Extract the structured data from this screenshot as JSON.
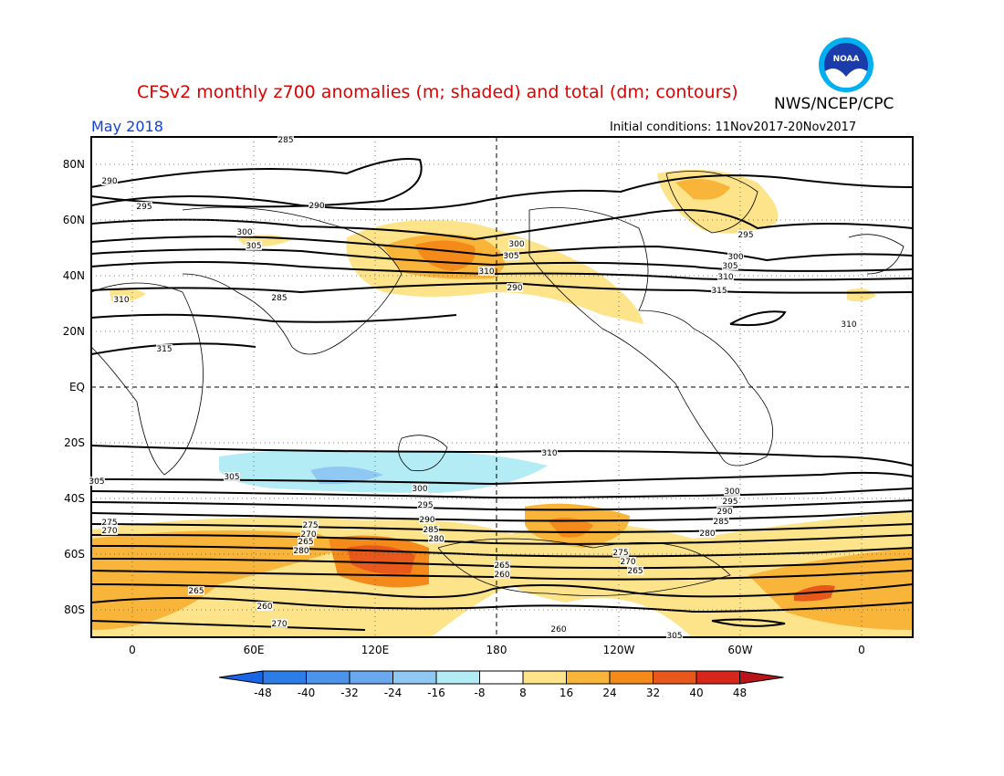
{
  "header": {
    "title": "CFSv2 monthly z700 anomalies (m; shaded) and total (dm; contours)",
    "agency": "NWS/NCEP/CPC",
    "month": "May 2018",
    "initial_conditions": "Initial conditions: 11Nov2017-20Nov2017"
  },
  "logo": {
    "icon": "noaa-logo",
    "text": "NOAA"
  },
  "map": {
    "lat_labels": [
      "80N",
      "60N",
      "40N",
      "20N",
      "EQ",
      "20S",
      "40S",
      "60S",
      "80S"
    ],
    "lon_labels": [
      "0",
      "60E",
      "120E",
      "180",
      "120W",
      "60W",
      "0"
    ],
    "contour_labels": [
      "285",
      "290",
      "295",
      "300",
      "305",
      "310",
      "315",
      "290",
      "285",
      "300",
      "305",
      "310",
      "290",
      "295",
      "300",
      "305",
      "310",
      "315",
      "310",
      "310",
      "305",
      "300",
      "295",
      "290",
      "285",
      "280",
      "275",
      "270",
      "265",
      "280",
      "275",
      "270",
      "265",
      "260",
      "305",
      "300",
      "295",
      "290",
      "285",
      "280",
      "275",
      "270",
      "265",
      "260",
      "270",
      "265",
      "260",
      "305"
    ]
  },
  "colorbar": {
    "ticks": [
      "-48",
      "-40",
      "-32",
      "-24",
      "-16",
      "-8",
      "8",
      "16",
      "24",
      "32",
      "40",
      "48"
    ],
    "colors": [
      "#1a64e6",
      "#2e7ce8",
      "#4c93ec",
      "#6aa9f0",
      "#90c8f4",
      "#b4ecf6",
      "#ffffff",
      "#fde38a",
      "#f9b53a",
      "#f38a1a",
      "#e8581a",
      "#d8261a",
      "#b8141a"
    ]
  }
}
